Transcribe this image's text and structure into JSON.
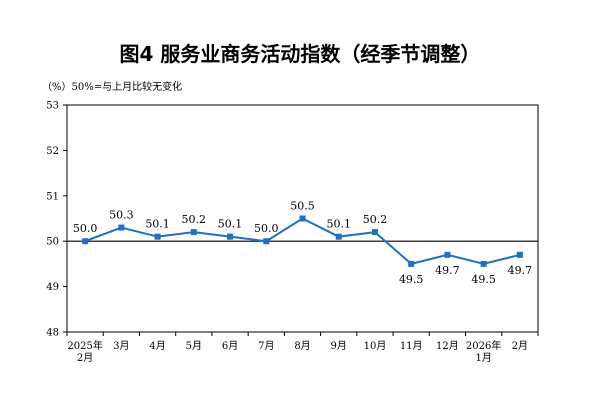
{
  "chart_data": {
    "type": "line",
    "title": "图4  服务业商务活动指数（经季节调整）",
    "unit_note": "（%）50%=与上月比较无变化",
    "categories": [
      [
        "2025年",
        "2月"
      ],
      [
        "3月"
      ],
      [
        "4月"
      ],
      [
        "5月"
      ],
      [
        "6月"
      ],
      [
        "7月"
      ],
      [
        "8月"
      ],
      [
        "9月"
      ],
      [
        "10月"
      ],
      [
        "11月"
      ],
      [
        "12月"
      ],
      [
        "2026年",
        "1月"
      ],
      [
        "2月"
      ]
    ],
    "series": [
      {
        "values": [
          50.0,
          50.3,
          50.1,
          50.2,
          50.1,
          50.0,
          50.5,
          50.1,
          50.2,
          49.5,
          49.7,
          49.5,
          49.7
        ],
        "labels": [
          "50.0",
          "50.3",
          "50.1",
          "50.2",
          "50.1",
          "50.0",
          "50.5",
          "50.1",
          "50.2",
          "49.5",
          "49.7",
          "49.5",
          "49.7"
        ],
        "color": "#1f6fc5"
      }
    ],
    "ylim": [
      48,
      53
    ],
    "yticks": [
      48,
      49,
      50,
      51,
      52,
      53
    ],
    "reference_line": 50,
    "grid": false,
    "legend": "none"
  }
}
